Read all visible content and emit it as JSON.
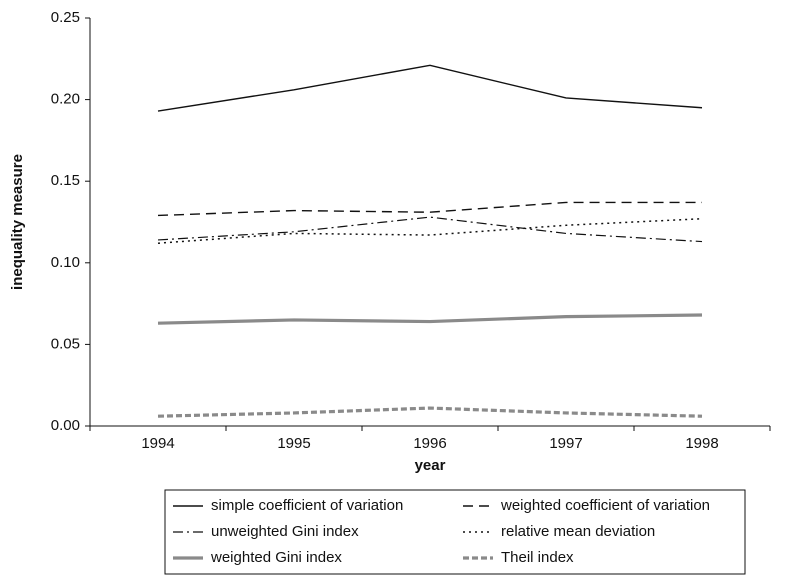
{
  "chart_data": {
    "type": "line",
    "xlabel": "year",
    "ylabel": "inequality measure",
    "categories": [
      "1994",
      "1995",
      "1996",
      "1997",
      "1998"
    ],
    "ylim": [
      0,
      0.25
    ],
    "yticks": [
      {
        "value": 0,
        "label": "0.00"
      },
      0.05,
      {
        "value": 0.1,
        "label": "0.10"
      },
      0.15,
      {
        "value": 0.2,
        "label": "0.20"
      },
      0.25
    ],
    "grid": false,
    "legend": "bottom",
    "series": [
      {
        "name": "simple coefficient of variation",
        "color": "#111111",
        "line_style": "solid",
        "values": [
          0.193,
          0.206,
          0.221,
          0.201,
          0.195
        ]
      },
      {
        "name": "weighted coefficient of variation",
        "color": "#111111",
        "line_style": "dashed",
        "values": [
          0.129,
          0.132,
          0.131,
          0.137,
          0.137
        ]
      },
      {
        "name": "unweighted Gini index",
        "color": "#111111",
        "line_style": "dashdot",
        "values": [
          0.114,
          0.119,
          0.128,
          0.118,
          0.113
        ]
      },
      {
        "name": "relative mean deviation",
        "color": "#111111",
        "line_style": "dotted",
        "values": [
          0.112,
          0.118,
          0.117,
          0.123,
          0.127
        ]
      },
      {
        "name": "weighted Gini index",
        "color": "#8a8a8a",
        "line_style": "thick",
        "values": [
          0.063,
          0.065,
          0.064,
          0.067,
          0.068
        ]
      },
      {
        "name": "Theil index",
        "color": "#8a8a8a",
        "line_style": "thickdashed",
        "values": [
          0.006,
          0.008,
          0.011,
          0.008,
          0.006
        ]
      }
    ]
  }
}
